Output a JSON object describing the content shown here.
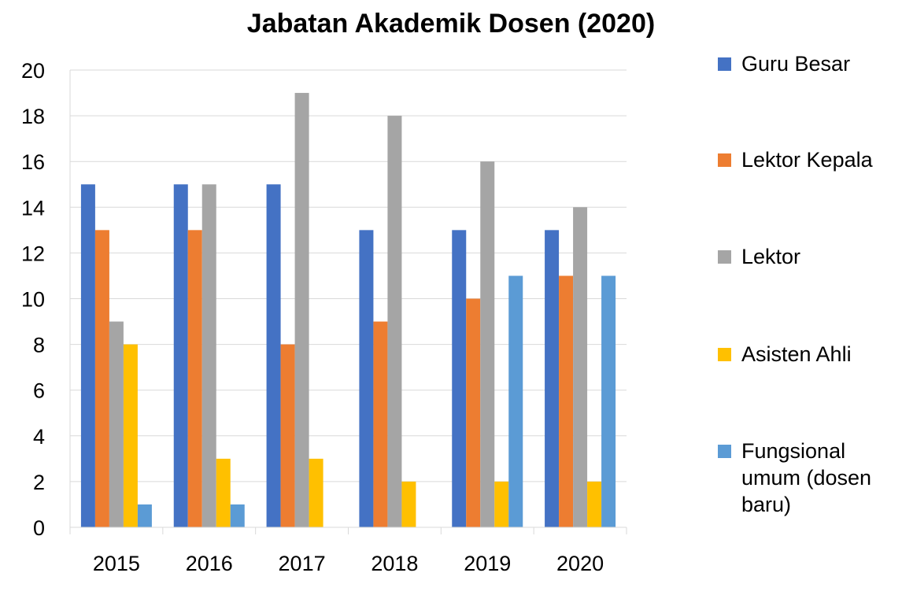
{
  "chart_data": {
    "type": "bar",
    "title": "Jabatan Akademik Dosen (2020)",
    "categories": [
      "2015",
      "2016",
      "2017",
      "2018",
      "2019",
      "2020"
    ],
    "series": [
      {
        "name": "Guru Besar",
        "color": "#4472C4",
        "values": [
          15,
          15,
          15,
          13,
          13,
          13
        ]
      },
      {
        "name": "Lektor Kepala",
        "color": "#ED7D31",
        "values": [
          13,
          13,
          8,
          9,
          10,
          11
        ]
      },
      {
        "name": "Lektor",
        "color": "#A5A5A5",
        "values": [
          9,
          15,
          19,
          18,
          16,
          14
        ]
      },
      {
        "name": "Asisten Ahli",
        "color": "#FFC000",
        "values": [
          8,
          3,
          3,
          2,
          2,
          2
        ]
      },
      {
        "name": "Fungsional umum (dosen baru)",
        "color": "#5B9BD5",
        "values": [
          1,
          1,
          0,
          0,
          11,
          11
        ]
      }
    ],
    "ylim": [
      0,
      20
    ],
    "yticks": [
      0,
      2,
      4,
      6,
      8,
      10,
      12,
      14,
      16,
      18,
      20
    ],
    "grid": true,
    "legend_position": "right",
    "xlabel": "",
    "ylabel": ""
  }
}
